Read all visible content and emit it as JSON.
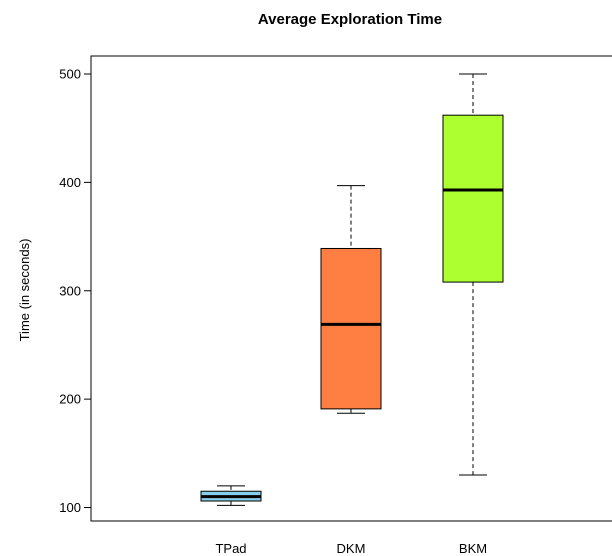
{
  "chart_data": {
    "type": "boxplot",
    "title": "Average Exploration Time",
    "xlabel": "",
    "ylabel": "Time (in seconds)",
    "ylim": [
      82,
      502
    ],
    "yticks": [
      100,
      200,
      300,
      400,
      500
    ],
    "categories": [
      "TPad",
      "DKM",
      "BKM"
    ],
    "boxes": [
      {
        "name": "TPad",
        "whisker_low": 102,
        "q1": 106,
        "median": 110,
        "q3": 115,
        "whisker_high": 120,
        "color": "#87CEEB"
      },
      {
        "name": "DKM",
        "whisker_low": 187,
        "q1": 191,
        "median": 269,
        "q3": 339,
        "whisker_high": 397,
        "color": "#FF7F42"
      },
      {
        "name": "BKM",
        "whisker_low": 130,
        "q1": 308,
        "median": 393,
        "q3": 462,
        "whisker_high": 500,
        "color": "#ADFF2F"
      }
    ],
    "grid": false
  }
}
